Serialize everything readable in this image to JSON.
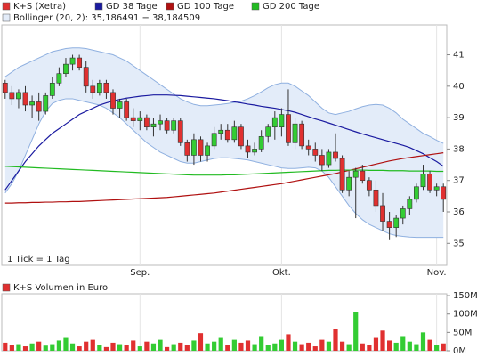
{
  "chart_data": [
    {
      "type": "candlestick",
      "note": "1 Tick = 1 Tag",
      "categories": [
        null,
        null,
        null,
        null,
        null,
        null,
        null,
        null,
        null,
        null,
        null,
        null,
        null,
        null,
        null,
        null,
        null,
        null,
        null,
        null,
        "Sep.",
        null,
        null,
        null,
        null,
        null,
        null,
        null,
        null,
        null,
        null,
        null,
        null,
        null,
        null,
        null,
        null,
        null,
        null,
        null,
        null,
        "Okt.",
        null,
        null,
        null,
        null,
        null,
        null,
        null,
        null,
        null,
        null,
        null,
        null,
        null,
        null,
        null,
        null,
        null,
        null,
        null,
        null,
        null,
        null,
        "Nov.",
        null
      ],
      "series": {
        "name": "K+S (Xetra)",
        "color": "#e03030",
        "up_color": "#33cc33",
        "open": [
          40.1,
          39.8,
          39.6,
          39.8,
          39.4,
          39.5,
          39.2,
          39.7,
          40.1,
          40.4,
          40.7,
          40.9,
          40.6,
          40.0,
          39.8,
          40.1,
          39.8,
          39.3,
          39.5,
          39.0,
          38.9,
          39.0,
          38.7,
          38.8,
          38.9,
          38.6,
          38.9,
          38.2,
          37.8,
          38.3,
          37.8,
          38.1,
          38.5,
          38.6,
          38.3,
          38.7,
          38.1,
          37.9,
          38.0,
          38.4,
          38.7,
          38.7,
          39.1,
          38.2,
          38.8,
          38.1,
          38.0,
          37.8,
          37.5,
          37.9,
          37.7,
          36.7,
          37.1,
          37.3,
          37.0,
          36.7,
          36.2,
          35.7,
          35.5,
          35.8,
          36.1,
          36.4,
          36.8,
          37.2,
          36.7,
          36.8
        ],
        "high": [
          40.2,
          40.0,
          39.9,
          40.0,
          39.7,
          39.8,
          39.8,
          40.3,
          40.6,
          40.9,
          41.0,
          41.0,
          40.8,
          40.2,
          40.2,
          40.2,
          39.9,
          39.6,
          39.6,
          39.3,
          39.2,
          39.1,
          39.0,
          39.1,
          39.0,
          39.0,
          39.0,
          38.3,
          38.5,
          38.4,
          38.2,
          38.7,
          38.8,
          38.8,
          38.9,
          38.8,
          38.3,
          38.2,
          38.6,
          38.8,
          39.2,
          39.3,
          39.9,
          39.0,
          38.9,
          38.3,
          38.2,
          38.0,
          38.0,
          38.5,
          37.8,
          37.3,
          37.4,
          37.5,
          37.1,
          37.0,
          36.6,
          36.0,
          35.9,
          36.2,
          36.5,
          36.9,
          37.5,
          37.3,
          36.9,
          36.9
        ],
        "low": [
          39.6,
          39.4,
          39.3,
          39.2,
          39.0,
          38.9,
          39.1,
          39.6,
          40.0,
          40.3,
          40.5,
          40.5,
          39.8,
          39.6,
          39.7,
          39.6,
          39.1,
          39.0,
          38.9,
          38.7,
          38.6,
          38.6,
          38.4,
          38.6,
          38.5,
          38.5,
          38.1,
          37.6,
          37.5,
          37.6,
          37.6,
          38.0,
          38.3,
          38.2,
          38.2,
          38.0,
          37.7,
          37.8,
          37.9,
          38.2,
          38.3,
          38.4,
          38.1,
          38.0,
          38.0,
          37.8,
          37.6,
          37.3,
          37.4,
          37.6,
          36.6,
          36.5,
          35.8,
          36.9,
          36.5,
          36.0,
          35.4,
          35.1,
          35.2,
          35.6,
          35.9,
          36.3,
          36.7,
          36.6,
          36.5,
          36.0
        ],
        "close": [
          39.8,
          39.6,
          39.8,
          39.4,
          39.5,
          39.2,
          39.7,
          40.1,
          40.4,
          40.7,
          40.9,
          40.6,
          40.0,
          39.8,
          40.1,
          39.8,
          39.3,
          39.5,
          39.0,
          38.9,
          39.0,
          38.7,
          38.8,
          38.9,
          38.6,
          38.9,
          38.2,
          37.8,
          38.3,
          37.8,
          38.1,
          38.5,
          38.6,
          38.3,
          38.7,
          38.1,
          37.9,
          38.0,
          38.4,
          38.7,
          39.0,
          39.1,
          38.2,
          38.8,
          38.1,
          38.0,
          37.8,
          37.5,
          37.9,
          37.7,
          36.7,
          37.1,
          37.3,
          37.0,
          36.7,
          36.2,
          35.7,
          35.5,
          35.8,
          36.1,
          36.4,
          36.8,
          37.2,
          36.7,
          36.8,
          36.4
        ]
      },
      "lines": [
        {
          "name": "GD 38 Tage",
          "color": "#1a1aa0",
          "values": [
            36.7,
            37.0,
            37.3,
            37.6,
            37.85,
            38.1,
            38.3,
            38.5,
            38.65,
            38.8,
            38.95,
            39.1,
            39.2,
            39.3,
            39.4,
            39.47,
            39.53,
            39.58,
            39.62,
            39.65,
            39.68,
            39.7,
            39.72,
            39.72,
            39.72,
            39.71,
            39.7,
            39.68,
            39.66,
            39.64,
            39.62,
            39.6,
            39.57,
            39.54,
            39.5,
            39.47,
            39.43,
            39.4,
            39.36,
            39.33,
            39.3,
            39.26,
            39.22,
            39.17,
            39.1,
            39.03,
            38.96,
            38.9,
            38.83,
            38.76,
            38.69,
            38.62,
            38.55,
            38.48,
            38.42,
            38.36,
            38.3,
            38.24,
            38.18,
            38.12,
            38.05,
            37.95,
            37.85,
            37.72,
            37.6,
            37.45
          ]
        },
        {
          "name": "GD 100 Tage",
          "color": "#b01010",
          "values": [
            36.28,
            36.28,
            36.29,
            36.29,
            36.3,
            36.3,
            36.31,
            36.31,
            36.32,
            36.32,
            36.33,
            36.33,
            36.34,
            36.35,
            36.36,
            36.37,
            36.38,
            36.39,
            36.4,
            36.41,
            36.42,
            36.43,
            36.44,
            36.45,
            36.46,
            36.48,
            36.5,
            36.52,
            36.54,
            36.56,
            36.58,
            36.6,
            36.63,
            36.66,
            36.69,
            36.72,
            36.75,
            36.78,
            36.81,
            36.84,
            36.87,
            36.9,
            36.94,
            36.98,
            37.02,
            37.06,
            37.1,
            37.14,
            37.18,
            37.22,
            37.27,
            37.32,
            37.37,
            37.42,
            37.47,
            37.52,
            37.57,
            37.62,
            37.66,
            37.7,
            37.73,
            37.76,
            37.79,
            37.82,
            37.85,
            37.88
          ]
        },
        {
          "name": "GD 200 Tage",
          "color": "#22bb22",
          "values": [
            37.45,
            37.44,
            37.43,
            37.42,
            37.41,
            37.4,
            37.39,
            37.38,
            37.37,
            37.36,
            37.35,
            37.34,
            37.33,
            37.32,
            37.31,
            37.3,
            37.29,
            37.28,
            37.27,
            37.26,
            37.25,
            37.24,
            37.23,
            37.22,
            37.21,
            37.2,
            37.19,
            37.18,
            37.17,
            37.17,
            37.17,
            37.17,
            37.17,
            37.18,
            37.18,
            37.19,
            37.2,
            37.21,
            37.22,
            37.23,
            37.24,
            37.25,
            37.26,
            37.27,
            37.28,
            37.29,
            37.3,
            37.31,
            37.32,
            37.32,
            37.33,
            37.33,
            37.33,
            37.33,
            37.32,
            37.32,
            37.32,
            37.31,
            37.31,
            37.31,
            37.3,
            37.3,
            37.3,
            37.3,
            37.29,
            37.29
          ]
        }
      ],
      "bollinger": {
        "name": "Bollinger (20, 2): 35,186491 − 38,184509",
        "color": "#8fb0e0",
        "fill": "#e3ecf9",
        "upper": [
          40.3,
          40.45,
          40.6,
          40.7,
          40.8,
          40.9,
          41.0,
          41.1,
          41.15,
          41.2,
          41.22,
          41.22,
          41.2,
          41.15,
          41.1,
          41.05,
          41.0,
          40.9,
          40.8,
          40.65,
          40.5,
          40.35,
          40.2,
          40.05,
          39.9,
          39.75,
          39.6,
          39.5,
          39.42,
          39.38,
          39.38,
          39.4,
          39.42,
          39.45,
          39.48,
          39.52,
          39.6,
          39.7,
          39.82,
          39.95,
          40.05,
          40.1,
          40.1,
          40.0,
          39.85,
          39.7,
          39.5,
          39.3,
          39.15,
          39.1,
          39.15,
          39.2,
          39.28,
          39.35,
          39.4,
          39.42,
          39.4,
          39.3,
          39.15,
          38.95,
          38.8,
          38.65,
          38.5,
          38.4,
          38.28,
          38.18
        ],
        "lower": [
          36.6,
          36.9,
          37.3,
          37.8,
          38.3,
          38.8,
          39.2,
          39.45,
          39.55,
          39.6,
          39.6,
          39.55,
          39.5,
          39.45,
          39.4,
          39.3,
          39.15,
          39.0,
          38.8,
          38.6,
          38.4,
          38.2,
          38.05,
          37.9,
          37.8,
          37.7,
          37.6,
          37.55,
          37.55,
          37.6,
          37.65,
          37.7,
          37.72,
          37.72,
          37.7,
          37.68,
          37.65,
          37.6,
          37.55,
          37.5,
          37.45,
          37.4,
          37.38,
          37.38,
          37.4,
          37.42,
          37.4,
          37.3,
          37.1,
          36.8,
          36.5,
          36.2,
          35.95,
          35.75,
          35.6,
          35.5,
          35.4,
          35.3,
          35.25,
          35.22,
          35.2,
          35.19,
          35.19,
          35.19,
          35.19,
          35.19
        ]
      },
      "ylim": [
        34.3,
        41.95
      ],
      "yticks": [
        35,
        36,
        37,
        38,
        39,
        40,
        41
      ]
    },
    {
      "type": "bar",
      "title": "K+S Volumen in Euro",
      "color": "#e03030",
      "values": [
        22,
        15,
        18,
        12,
        20,
        25,
        14,
        18,
        28,
        35,
        20,
        12,
        25,
        30,
        15,
        10,
        22,
        18,
        15,
        28,
        12,
        25,
        20,
        30,
        10,
        18,
        22,
        15,
        28,
        48,
        20,
        25,
        35,
        15,
        30,
        22,
        28,
        18,
        40,
        15,
        20,
        30,
        45,
        25,
        18,
        22,
        12,
        30,
        25,
        60,
        25,
        18,
        105,
        20,
        15,
        35,
        55,
        28,
        22,
        40,
        25,
        18,
        50,
        30,
        15,
        20
      ],
      "ylim": [
        0,
        155
      ],
      "yticks": [
        {
          "value": 0,
          "label": "0M"
        },
        {
          "value": 50,
          "label": "50M"
        },
        {
          "value": 100,
          "label": "100M"
        },
        {
          "value": 150,
          "label": "150M"
        }
      ]
    }
  ]
}
